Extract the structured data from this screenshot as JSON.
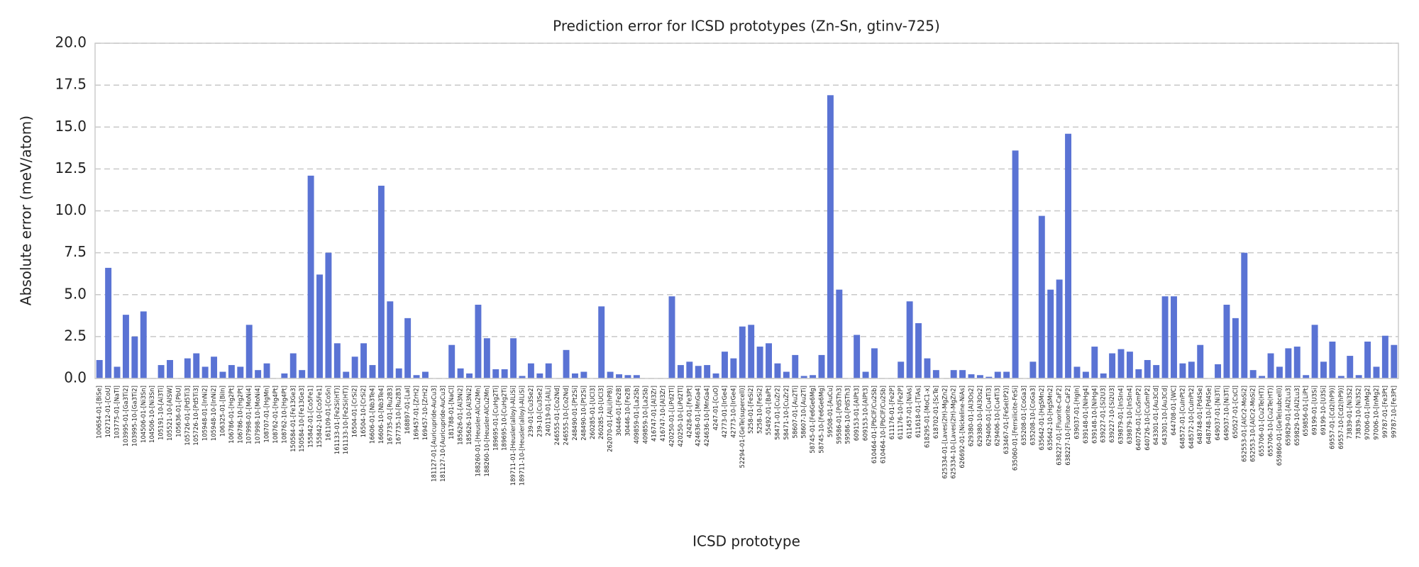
{
  "chart_data": {
    "type": "bar",
    "title": "Prediction error for ICSD prototypes (Zn-Sn, gtinv-725)",
    "xlabel": "ICSD prototype",
    "ylabel": "Absolute error (meV/atom)",
    "color": "#5a73d4",
    "grid": true,
    "ylim": [
      0,
      20
    ],
    "yticks": [
      {
        "value": 0,
        "label": "0.0"
      },
      2.5,
      {
        "value": 5,
        "label": "5.0"
      },
      7.5,
      {
        "value": 10,
        "label": "10.0"
      },
      12.5,
      {
        "value": 15,
        "label": "15.0"
      },
      17.5,
      {
        "value": 20,
        "label": "20.0"
      }
    ],
    "categories": [
      "100654-01-[BiSe]",
      "102712-01-[CoU]",
      "103775-01-[NaTl]",
      "103995-01-[Ga3Ti2]",
      "103995-10-[Ga3Ti2]",
      "104506-01-[Ni3Sn]",
      "104506-10-[Ni3Sn]",
      "105191-10-[Al3Ti]",
      "105521-10-[AlSW]",
      "105636-01-[PbU]",
      "105726-01-[Pd5Ti3]",
      "105726-10-[Pd5Ti3]",
      "105948-01-[InNi2]",
      "105948-10-[InNi2]",
      "106325-01-[BiIn]",
      "106786-01-[Hg2Pt]",
      "106786-10-[Hg2Pt]",
      "107998-01-[MoNi4]",
      "107998-10-[MoNi4]",
      "108707-01-[HgMn]",
      "108762-01-[Hg4Pt]",
      "108762-10-[Hg4Pt]",
      "150584-01-[Fe13Ge3]",
      "150584-10-[Fe13Ge3]",
      "155842-01-[Co5Fe1]",
      "155842-10-[Co5Fe1]",
      "161109-01-[CoSn]",
      "161133-01-[Fe2Si(HT)]",
      "161133-10-[Fe2Si(HT)]",
      "16504-01-[CrSi2]",
      "16504-10-[CrSi2]",
      "16606-01-[Nb3Te4]",
      "16606-10-[Nb3Te4]",
      "167735-01-[Ru2B3]",
      "167735-10-[Ru2B3]",
      "168897-01-[LaI]",
      "169457-01-[ZrH2]",
      "169457-10-[ZrH2]",
      "181127-01-[Auricupride-AuCu3]",
      "181127-10-[Auricupride-AuCu3]",
      "181788-01-[NaCl]",
      "185626-01-[Al3Ni2]",
      "185626-10-[Al3Ni2]",
      "188260-01-[Heusler-AlCu2Mn]",
      "188260-10-[Heusler-AlCu2Mn]",
      "189695-01-[CuHg2Ti]",
      "189695-10-[CuHg2Ti]",
      "189711-01-[Heusler(alloy)-AlLiSi]",
      "189711-10-[Heusler(alloy)-AlLiSi]",
      "239-01-[Cu3Se2]",
      "239-10-[Cu3Se2]",
      "240119-01-[AlLi]",
      "246555-01-[Co2Nd]",
      "246555-10-[Co2Nd]",
      "248490-01-[Pt2Si]",
      "248490-10-[Pt2Si]",
      "260285-01-[UCl3]",
      "260285-10-[UCl3]",
      "262070-01-[AlLi(hP8)]",
      "30446-01-[Fe2B]",
      "30446-10-[Fe2B]",
      "409859-01-[La2Sb]",
      "409859-10-[La2Sb]",
      "416747-01-[Al3Zr]",
      "416747-10-[Al3Zr]",
      "420250-01-[LiPd2Tl]",
      "420250-10-[LiPd2Tl]",
      "42428-01-[Fe3Pt]",
      "424636-01-[MnGa4]",
      "424636-10-[MnGa4]",
      "4247-01-[CuO]",
      "42773-01-[IrGe4]",
      "42773-10-[IrGe4]",
      "52294-01-[GeTe(supercell)]",
      "5258-01-[FeSi2]",
      "5258-10-[FeSi2]",
      "55492-01-[BaPt]",
      "58471-01-[CuZr2]",
      "58471-10-[CuZr2]",
      "58607-01-[Au2Ti]",
      "58607-10-[Au2Ti]",
      "58745-01-[Fe6Ge6Mg]",
      "58745-10-[Fe6Ge6Mg]",
      "59508-01-[AuCu]",
      "59586-01-[PdSTh3]",
      "59586-10-[PdSTh3]",
      "609153-01-[AlPt3]",
      "609153-10-[AlPt3]",
      "610464-01-[PbClF/Cu2Sb]",
      "610464-10-[PbClF/Cu2Sb]",
      "611176-01-[Fe2P]",
      "611176-10-[Fe2P]",
      "611457-01-[NiAs]",
      "611618-01-[TiAs]",
      "618295-01-[MoC1-x]",
      "618702-01-[ScTe]",
      "625334-01-[Laves(2H)-MgZn2]",
      "625334-10-[Laves(2H)-MgZn2]",
      "626692-01-[Nickeline-NiAs]",
      "629380-01-[Al3Os2]",
      "629380-10-[Al3Os2]",
      "629406-01-[Cu4Ti3]",
      "629406-10-[Cu4Ti3]",
      "633467-01-[FeSe(tP2)]",
      "635060-01-[Ferrsilicite-FeSi]",
      "635208-01-[CoGa3]",
      "635208-10-[CoGa3]",
      "635642-01-[HgSMn2]",
      "635642-10-[HgSMn2]",
      "638227-01-[Fluorite-CaF2]",
      "638227-10-[Fluorite-CaF2]",
      "639037-01-[HgIn]",
      "639148-01-[NiHg4]",
      "639148-10-[NiHg4]",
      "639227-01-[Si2U3]",
      "639227-10-[Si2U3]",
      "639879-01-[InSIn4]",
      "639879-10-[InSIn4]",
      "640726-01-[CuSmP2]",
      "640726-10-[CuSmP2]",
      "643301-01-[Au3Cd]",
      "643301-10-[Au3Cd]",
      "644708-01-[WC]",
      "648572-01-[CuInPt2]",
      "648572-10-[CuInPt2]",
      "648748-01-[Pd4Se]",
      "648748-10-[Pd4Se]",
      "649037-01-[Ni3Ti]",
      "649037-10-[Ni3Ti]",
      "650527-01-[CsCl]",
      "652553-01-[AlCr2-MoSi2]",
      "652553-10-[AlCr2-MoSi2]",
      "655706-01-[Cu2Te(HT)]",
      "655706-10-[Cu2Te(HT)]",
      "659860-01-[GeTe(subcell)]",
      "659829-01-[Al2Lu3]",
      "659829-10-[Al2Lu3]",
      "659856-01-[LiPt]",
      "69199-01-[U3Si]",
      "69199-10-[U3Si]",
      "69557-01-[Cd2(hP9)]",
      "69557-10-[Cd2(hP9)]",
      "73839-01-[Ni3S2]",
      "73839-10-[Ni3S2]",
      "97006-01-[InMg2]",
      "97006-10-[InMg2]",
      "99787-01-[Fe3Pt]",
      "99787-10-[Fe3Pt]"
    ],
    "values": [
      1.1,
      6.6,
      0.7,
      3.8,
      2.5,
      4.0,
      0,
      0.8,
      1.1,
      0,
      1.2,
      1.5,
      0.7,
      1.3,
      0.4,
      0.8,
      0.7,
      3.2,
      0.5,
      0.9,
      0,
      0.3,
      1.5,
      0.5,
      12.1,
      6.2,
      7.5,
      2.1,
      0.4,
      1.3,
      2.1,
      0.8,
      11.5,
      4.6,
      0.6,
      3.6,
      0.2,
      0.4,
      0,
      0,
      2.0,
      0.6,
      0.3,
      4.4,
      2.4,
      0.55,
      0.55,
      2.4,
      0.15,
      0.9,
      0.3,
      0.9,
      0,
      1.7,
      0.3,
      0.4,
      0,
      4.3,
      0.4,
      0.25,
      0.2,
      0.2,
      0,
      0,
      0,
      4.9,
      0.8,
      1.0,
      0.75,
      0.8,
      0.3,
      1.6,
      1.2,
      3.1,
      3.2,
      1.9,
      2.1,
      0.9,
      0.4,
      1.4,
      0.15,
      0.2,
      1.4,
      16.9,
      5.3,
      0,
      2.6,
      0.4,
      1.8,
      0,
      0,
      1.0,
      4.6,
      3.3,
      1.2,
      0.5,
      0,
      0.5,
      0.5,
      0.25,
      0.2,
      0.1,
      0.4,
      0.4,
      13.6,
      0,
      1.0,
      9.7,
      5.3,
      5.9,
      14.6,
      0.7,
      0.4,
      1.9,
      0.3,
      1.5,
      1.75,
      1.6,
      0.55,
      1.1,
      0.8,
      4.9,
      4.9,
      0.9,
      1.0,
      2.0,
      0,
      0.85,
      4.4,
      3.6,
      7.5,
      0.5,
      0.15,
      1.5,
      0.7,
      1.8,
      1.9,
      0.2,
      3.2,
      1.0,
      2.2,
      0.15,
      1.35,
      0.2,
      2.2,
      0.7,
      2.55,
      2.0
    ]
  }
}
